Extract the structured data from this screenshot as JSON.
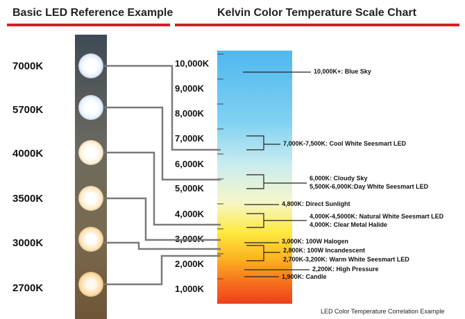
{
  "left_title": "Basic LED Reference Example",
  "right_title": "Kelvin Color Temperature Scale Chart",
  "led_labels": [
    "7000K",
    "5700K",
    "4000K",
    "3500K",
    "3000K",
    "2700K"
  ],
  "scale_labels": [
    "10,000K",
    "9,000K",
    "8,000K",
    "7,000K",
    "6,000K",
    "5,000K",
    "4,000K",
    "3,000K",
    "2,000K",
    "1,000K"
  ],
  "annotations": [
    "10,000K+: Blue Sky",
    "7,000K-7,500K: Cool White Seesmart LED",
    "6,000K: Cloudy Sky",
    "5,500K-6,000K:Day White Seesmart LED",
    "4,800K: Direct Sunlight",
    "4,000K-4,5000K: Natural White Seesmart LED",
    "4,000K: Clear Metal Halide",
    "3,000K: 100W Halogen",
    "2,800K: 100W Incandescent",
    "2,700K-3,200K: Warm White Seesmart LED",
    "2,200K: High Pressure",
    "1,900K: Candle"
  ],
  "caption": "LED Color Temperature Correlation Example",
  "colors": {
    "accent_bar": "#d61f26",
    "led_7000K": "#f4f8ff",
    "led_5700K": "#eef6ff",
    "led_4000K": "#fff4dc",
    "led_3500K": "#ffefd0",
    "led_3000K": "#ffe7bf",
    "led_2700K": "#ffe2b0"
  }
}
